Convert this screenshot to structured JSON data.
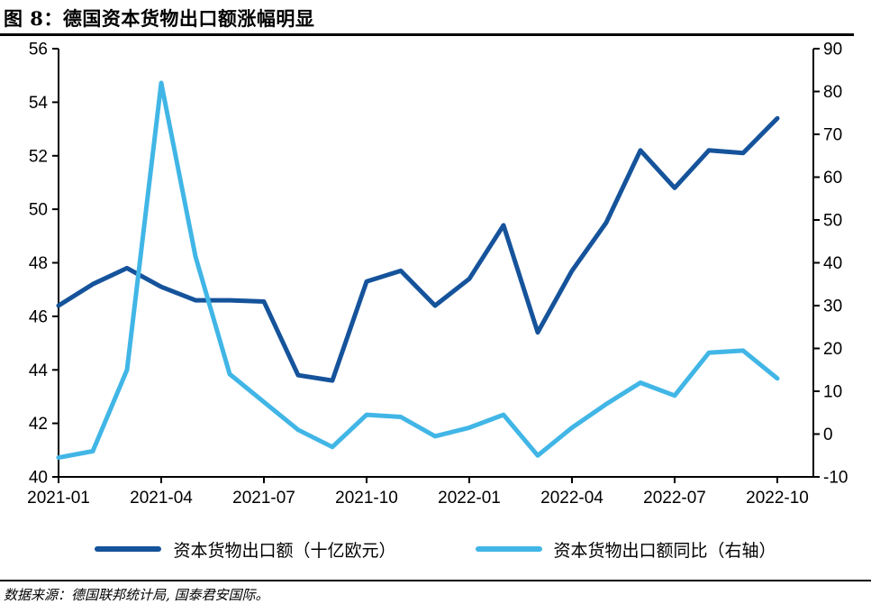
{
  "title": "图 8：德国资本货物出口额涨幅明显",
  "source_note": "数据来源：德国联邦统计局, 国泰君安国际。",
  "colors": {
    "dark_blue": "#15539b",
    "light_blue": "#41b6e6",
    "axis": "#000000",
    "text": "#000000"
  },
  "chart_data": {
    "type": "line",
    "title": "图 8：德国资本货物出口额涨幅明显",
    "x": [
      "2021-01",
      "2021-02",
      "2021-03",
      "2021-04",
      "2021-05",
      "2021-06",
      "2021-07",
      "2021-08",
      "2021-09",
      "2021-10",
      "2021-11",
      "2021-12",
      "2022-01",
      "2022-02",
      "2022-03",
      "2022-04",
      "2022-05",
      "2022-06",
      "2022-07",
      "2022-08",
      "2022-09",
      "2022-10"
    ],
    "x_tick_every": 3,
    "x_tick_labels": [
      "2021-01",
      "2021-04",
      "2021-07",
      "2021-10",
      "2022-01",
      "2022-04",
      "2022-07",
      "2022-10"
    ],
    "series": [
      {
        "name": "资本货物出口额（十亿欧元）",
        "axis": "left",
        "color_key": "dark_blue",
        "values": [
          46.4,
          47.2,
          47.8,
          47.1,
          46.6,
          46.6,
          46.55,
          43.8,
          43.6,
          47.3,
          47.7,
          46.4,
          47.4,
          49.4,
          45.4,
          47.7,
          49.5,
          52.2,
          50.8,
          52.2,
          52.1,
          53.4
        ]
      },
      {
        "name": "资本货物出口额同比（右轴）",
        "axis": "right",
        "color_key": "light_blue",
        "values": [
          -5.5,
          -4,
          15,
          82,
          41.5,
          14,
          7.5,
          1,
          -3,
          4.5,
          4,
          -0.5,
          1.5,
          4.5,
          -5,
          1.5,
          7,
          12,
          9,
          19,
          19.5,
          13
        ]
      }
    ],
    "left_axis": {
      "min": 40,
      "max": 56,
      "tick_step": 2,
      "ticks": [
        40,
        42,
        44,
        46,
        48,
        50,
        52,
        54,
        56
      ]
    },
    "right_axis": {
      "min": -10,
      "max": 90,
      "tick_step": 10,
      "ticks": [
        -10,
        0,
        10,
        20,
        30,
        40,
        50,
        60,
        70,
        80,
        90
      ]
    },
    "grid": false,
    "legend_position": "bottom"
  }
}
